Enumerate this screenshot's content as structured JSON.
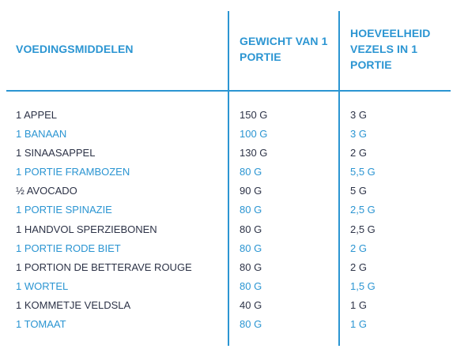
{
  "headers": {
    "col1": "VOEDINGSMIDDELEN",
    "col2": "GEWICHT VAN 1 PORTIE",
    "col3": "HOEVEELHEID VEZELS IN 1 PORTIE"
  },
  "colors": {
    "accent": "#2b95d2",
    "text_dark": "#2d3347"
  },
  "rows": [
    {
      "food": "1 APPEL",
      "weight": "150 G",
      "fiber": "3 G",
      "style": "dark"
    },
    {
      "food": "1 BANAAN",
      "weight": "100 G",
      "fiber": "3 G",
      "style": "blue"
    },
    {
      "food": "1 SINAASAPPEL",
      "weight": "130 G",
      "fiber": "2 G",
      "style": "dark"
    },
    {
      "food": "1 PORTIE FRAMBOZEN",
      "weight": "80 G",
      "fiber": "5,5 G",
      "style": "blue"
    },
    {
      "food": "½ AVOCADO",
      "weight": "90 G",
      "fiber": "5 G",
      "style": "dark"
    },
    {
      "food": "1 PORTIE SPINAZIE",
      "weight": "80 G",
      "fiber": "2,5 G",
      "style": "blue"
    },
    {
      "food": "1 HANDVOL SPERZIEBONEN",
      "weight": "80 G",
      "fiber": "2,5 G",
      "style": "dark"
    },
    {
      "food": "1 PORTIE RODE BIET",
      "weight": "80 G",
      "fiber": "2 G",
      "style": "blue"
    },
    {
      "food": "1 PORTION DE BETTERAVE ROUGE",
      "weight": "80 G",
      "fiber": "2 G",
      "style": "dark"
    },
    {
      "food": "1 WORTEL",
      "weight": "80 G",
      "fiber": "1,5 G",
      "style": "blue"
    },
    {
      "food": "1 KOMMETJE VELDSLA",
      "weight": "40 G",
      "fiber": "1 G",
      "style": "dark"
    },
    {
      "food": "1 TOMAAT",
      "weight": "80 G",
      "fiber": "1 G",
      "style": "blue"
    }
  ]
}
